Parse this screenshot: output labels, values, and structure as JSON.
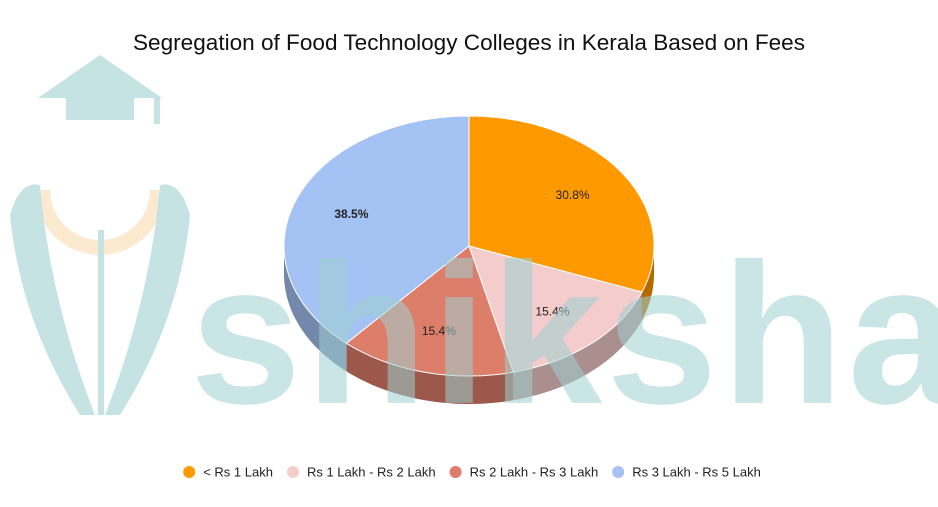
{
  "chart_data": {
    "type": "pie",
    "title": "Segregation of Food Technology Colleges in Kerala Based on Fees",
    "categories": [
      "< Rs 1 Lakh",
      "Rs 1 Lakh - Rs 2 Lakh",
      "Rs 2 Lakh - Rs 3 Lakh",
      "Rs 3 Lakh - Rs 5 Lakh"
    ],
    "values": [
      30.8,
      15.4,
      15.4,
      38.5
    ],
    "value_labels": [
      "30.8%",
      "15.4%",
      "15.4%",
      "38.5%"
    ],
    "colors": [
      "#ff9900",
      "#f4cccc",
      "#dd7e6b",
      "#a4c2f4"
    ],
    "legend": "bottom",
    "watermark": "shiksha"
  }
}
